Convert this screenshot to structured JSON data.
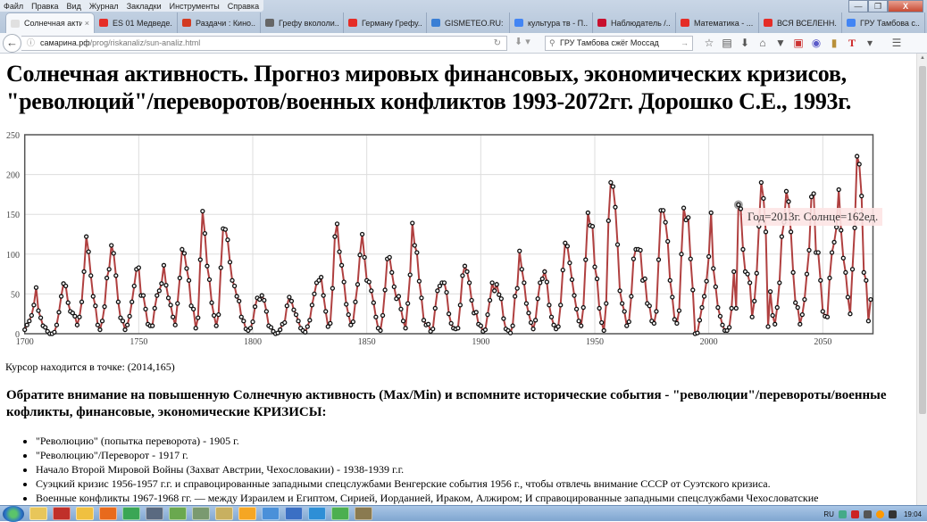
{
  "menu": [
    "Файл",
    "Правка",
    "Вид",
    "Журнал",
    "Закладки",
    "Инструменты",
    "Справка"
  ],
  "window_controls": {
    "minimize": "—",
    "maximize": "❐",
    "close": "X"
  },
  "tabs": [
    {
      "label": "Солнечная акти...",
      "active": true,
      "color": "#e0e0e0"
    },
    {
      "label": "ES 01 Медведе...",
      "color": "#e52d27"
    },
    {
      "label": "Раздачи : Кино...",
      "color": "#d33b22"
    },
    {
      "label": "Грефу вкололи...",
      "color": "#666666"
    },
    {
      "label": "Герману Грефу...",
      "color": "#e52d27"
    },
    {
      "label": "GISMETEO.RU: Г...",
      "color": "#3a7fd5"
    },
    {
      "label": "культура тв - П...",
      "color": "#4285f4"
    },
    {
      "label": "Наблюдатель /...",
      "color": "#c8102e"
    },
    {
      "label": "Математика - ...",
      "color": "#e52d27"
    },
    {
      "label": "ВСЯ ВСЕЛЕНН...",
      "color": "#e52d27"
    },
    {
      "label": "ГРУ Тамбова с...",
      "color": "#4285f4"
    }
  ],
  "tab_close": "×",
  "new_tab": "+",
  "address": {
    "host": "самарина.рф",
    "path": "/prog/riskanaliz/sun-analiz.html"
  },
  "search": {
    "value": "ГРУ Тамбова сжёг Моссад"
  },
  "page": {
    "title": "Солнечная активность. Прогноз мировых финансовых, экономических кризисов, \"революций\"/переворотов/военных конфликтов 1993-2072гг. Дорошко С.Е., 1993г.",
    "cursor": "Курсор находится в точке: (2014,165)",
    "notice": "Обратите внимание на повышенную Солнечную активность (Max/Min) и вспомните исторические события - \"революции\"/перевороты/военные кофликты, финансовые, экономические КРИЗИСЫ:",
    "events": [
      "\"Революцию\" (попытка переворота) - 1905 г.",
      "\"Революцию\"/Переворот - 1917 г.",
      "Начало Второй Мировой Войны (Захват Австрии, Чехословакии) - 1938-1939 г.г.",
      "Суэцкий кризис 1956-1957 г.г. и справоцированные западными спецслужбами Венгерские события 1956 г., чтобы отвлечь внимание СССР от Суэтского кризиса.",
      "Военные конфликты 1967-1968 гг. — между Израилем и Египтом, Сирией, Иорданией, Ираком, Алжиром; И справоцированные западными спецслужбами Чехословатские"
    ]
  },
  "chart_data": {
    "type": "line",
    "title": "",
    "xlabel": "",
    "ylabel": "",
    "xlim": [
      1700,
      2072
    ],
    "ylim": [
      0,
      250
    ],
    "x_ticks": [
      "1700",
      "1750",
      "1800",
      "1850",
      "1900",
      "1950",
      "2000",
      "2050"
    ],
    "y_ticks": [
      "0",
      "50",
      "100",
      "150",
      "200",
      "250"
    ],
    "grid": true,
    "line_color": "#b04040",
    "marker_color": "#111111",
    "x_first": 1700,
    "x_step": 1,
    "values": [
      5,
      11,
      16,
      23,
      36,
      58,
      29,
      20,
      10,
      8,
      3,
      0,
      0,
      2,
      11,
      27,
      47,
      63,
      60,
      39,
      28,
      26,
      22,
      11,
      21,
      40,
      78,
      122,
      103,
      73,
      47,
      35,
      11,
      5,
      16,
      34,
      70,
      81,
      111,
      101,
      73,
      40,
      20,
      16,
      5,
      11,
      22,
      40,
      60,
      81,
      83,
      48,
      48,
      31,
      12,
      10,
      10,
      32,
      48,
      54,
      63,
      86,
      61,
      45,
      36,
      21,
      11,
      38,
      70,
      106,
      101,
      82,
      67,
      35,
      31,
      7,
      20,
      93,
      154,
      126,
      85,
      68,
      39,
      23,
      10,
      24,
      83,
      132,
      131,
      118,
      90,
      67,
      60,
      47,
      41,
      21,
      16,
      6,
      4,
      7,
      15,
      34,
      45,
      43,
      48,
      42,
      28,
      10,
      8,
      3,
      0,
      1,
      5,
      12,
      14,
      35,
      46,
      41,
      30,
      24,
      16,
      7,
      4,
      2,
      9,
      17,
      36,
      50,
      64,
      67,
      71,
      48,
      28,
      9,
      13,
      57,
      122,
      138,
      103,
      86,
      65,
      37,
      24,
      11,
      15,
      40,
      62,
      99,
      125,
      96,
      67,
      65,
      54,
      39,
      21,
      7,
      4,
      23,
      55,
      94,
      96,
      77,
      59,
      44,
      47,
      31,
      16,
      7,
      38,
      74,
      139,
      111,
      102,
      66,
      45,
      17,
      11,
      12,
      3,
      6,
      32,
      54,
      60,
      64,
      64,
      52,
      25,
      13,
      7,
      6,
      7,
      36,
      73,
      85,
      78,
      64,
      42,
      26,
      27,
      12,
      10,
      3,
      5,
      24,
      42,
      64,
      54,
      62,
      49,
      44,
      19,
      6,
      4,
      1,
      10,
      47,
      57,
      104,
      81,
      64,
      38,
      26,
      14,
      6,
      17,
      44,
      64,
      69,
      78,
      65,
      36,
      21,
      11,
      6,
      9,
      36,
      80,
      114,
      110,
      89,
      68,
      48,
      31,
      16,
      10,
      33,
      93,
      152,
      136,
      135,
      84,
      69,
      32,
      14,
      4,
      38,
      142,
      190,
      185,
      159,
      112,
      54,
      38,
      28,
      10,
      15,
      47,
      94,
      106,
      106,
      105,
      67,
      69,
      38,
      35,
      16,
      13,
      28,
      93,
      155,
      155,
      140,
      116,
      67,
      46,
      18,
      13,
      29,
      100,
      158,
      143,
      146,
      94,
      55,
      0,
      1,
      17,
      33,
      47,
      66,
      97,
      152,
      82,
      59,
      33,
      22,
      11,
      4,
      4,
      8,
      32,
      78,
      32,
      162,
      157,
      106,
      78,
      75,
      64,
      21,
      41,
      76,
      135,
      190,
      170,
      128,
      9,
      53,
      23,
      12,
      33,
      64,
      122,
      140,
      179,
      166,
      128,
      77,
      39,
      33,
      12,
      24,
      43,
      75,
      105,
      172,
      176,
      102,
      102,
      67,
      28,
      22,
      21,
      70,
      102,
      115,
      134,
      181,
      130,
      95,
      77,
      46,
      25,
      81,
      133,
      223,
      213,
      173,
      77,
      67,
      16,
      43
    ],
    "highlight": {
      "year": 2013,
      "value": 162
    },
    "tooltip": "Год=2013г. Солнце=162ед."
  },
  "taskbar": {
    "apps": [
      "#e8c65a",
      "#c0302a",
      "#f0c040",
      "#e86a1c",
      "#3aa655",
      "#5a6a80",
      "#6aa84f",
      "#7a9a70",
      "#c8b060",
      "#f5a623",
      "#4a90d9",
      "#3b6fc4",
      "#2e8fd6",
      "#4caf50",
      "#8a7a50"
    ],
    "lang": "RU",
    "time": "19:04"
  }
}
